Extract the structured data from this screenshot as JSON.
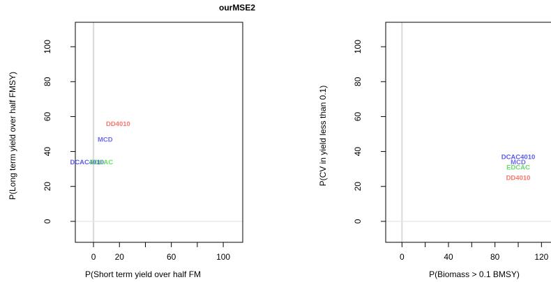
{
  "page_title": "ourMSE2",
  "chart_data": [
    {
      "type": "scatter",
      "xlabel": "P(Short term yield over half FM",
      "ylabel": "P(Long term yield over half FMSY)",
      "xlim": [
        -14,
        115
      ],
      "ylim": [
        -12,
        114
      ],
      "xticks": [
        0,
        20,
        60,
        100
      ],
      "xtick_marks": [
        0,
        20,
        40,
        60,
        80,
        100
      ],
      "yticks": [
        0,
        20,
        40,
        60,
        80,
        100
      ],
      "grid": false,
      "points": [
        {
          "name": "DD4010",
          "x": 19,
          "y": 56,
          "color": "#f8766d"
        },
        {
          "name": "MCD",
          "x": 9,
          "y": 47,
          "color": "#6b6bf0"
        },
        {
          "name": "DCAC4010",
          "x": -5,
          "y": 34,
          "color": "#5a5af0"
        },
        {
          "name": "EDCAC",
          "x": 6,
          "y": 34,
          "color": "#66dd66"
        }
      ]
    },
    {
      "type": "scatter",
      "xlabel": "P(Biomass > 0.1 BMSY)",
      "ylabel": "P(CV in yield less than 0.1)",
      "xlim": [
        -14,
        130
      ],
      "ylim": [
        -12,
        114
      ],
      "xticks": [
        0,
        40,
        80,
        120
      ],
      "xtick_marks": [
        0,
        20,
        40,
        60,
        80,
        100,
        120
      ],
      "yticks": [
        0,
        20,
        40,
        60,
        80,
        100
      ],
      "grid": false,
      "points": [
        {
          "name": "DCAC4010",
          "x": 100,
          "y": 37,
          "color": "#5a5af0"
        },
        {
          "name": "MCD",
          "x": 100,
          "y": 34,
          "color": "#6b6bf0"
        },
        {
          "name": "EDCAC",
          "x": 100,
          "y": 31,
          "color": "#66dd66"
        },
        {
          "name": "DD4010",
          "x": 100,
          "y": 25,
          "color": "#f8766d"
        }
      ]
    }
  ]
}
